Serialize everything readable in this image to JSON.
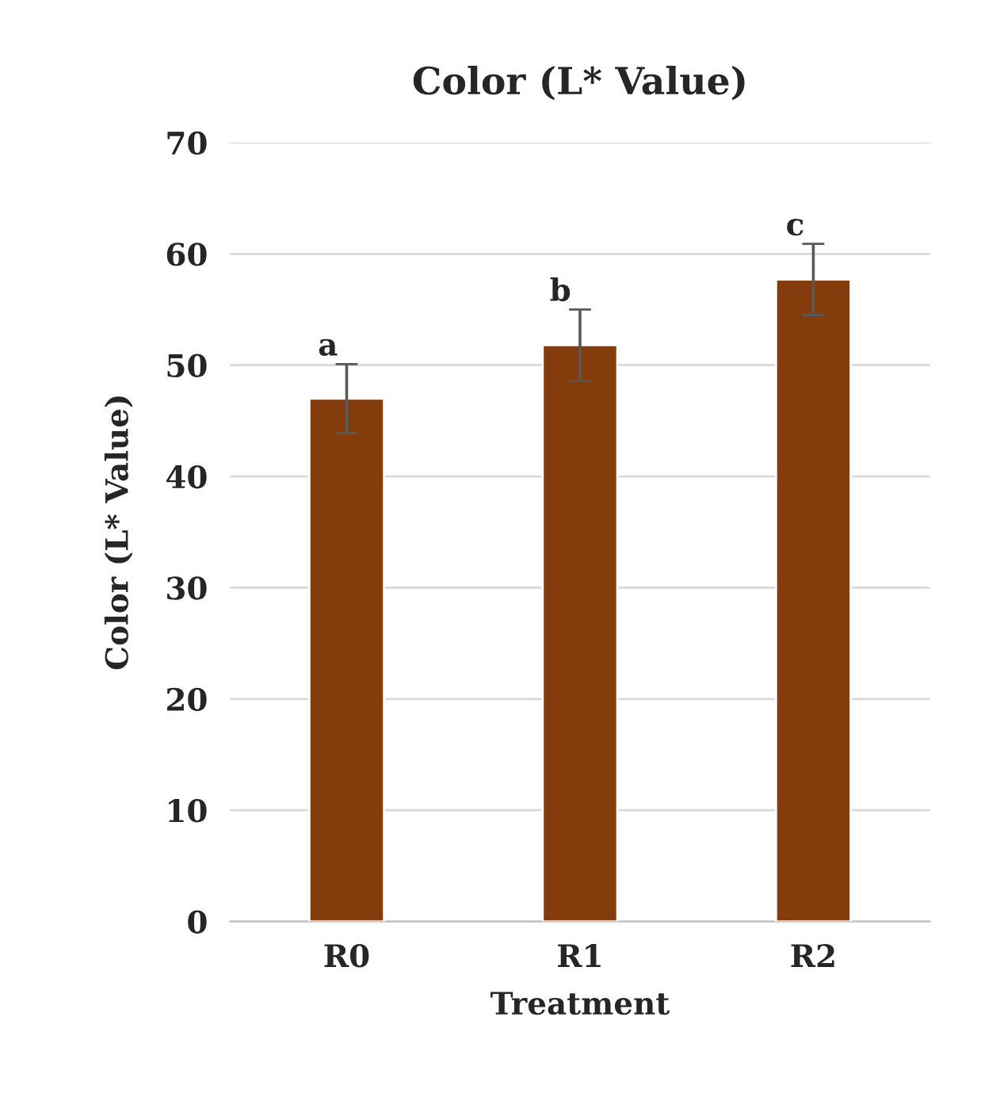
{
  "chart_data": {
    "type": "bar",
    "title": "Color (L* Value)",
    "xlabel": "Treatment",
    "ylabel": "Color (L* Value)",
    "categories": [
      "R0",
      "R1",
      "R2"
    ],
    "values": [
      47.0,
      51.8,
      57.7
    ],
    "errors": [
      3.1,
      3.2,
      3.2
    ],
    "color": "#843c0c",
    "ylim": [
      0,
      70
    ],
    "yticks": [
      0,
      10,
      20,
      30,
      40,
      50,
      60,
      70
    ],
    "grid": "y",
    "annotations": [
      {
        "text": "a",
        "x": "R0",
        "y": 50.1
      },
      {
        "text": "b",
        "x": "R1",
        "y": 55.0
      },
      {
        "text": "c",
        "x": "R2",
        "y": 60.9
      }
    ]
  }
}
